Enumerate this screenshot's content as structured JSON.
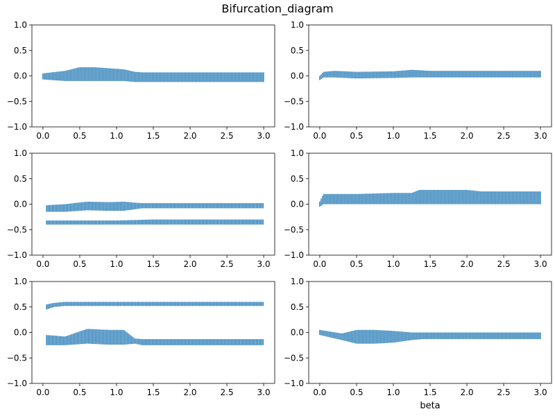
{
  "title": "Bifurcation_diagram",
  "xlabel": "beta",
  "colors": {
    "series": "#1f77b4",
    "axes": "#000000",
    "background": "#ffffff"
  },
  "chart_data": [
    {
      "type": "scatter",
      "panel": "top-left",
      "xlim": [
        -0.15,
        3.15
      ],
      "ylim": [
        -1.0,
        1.0
      ],
      "xticks": [
        0.0,
        0.5,
        1.0,
        1.5,
        2.0,
        2.5,
        3.0
      ],
      "yticks": [
        -1.0,
        -0.5,
        0.0,
        0.5,
        1.0
      ],
      "xtick_labels": [
        "0.0",
        "0.5",
        "1.0",
        "1.5",
        "2.0",
        "2.5",
        "3.0"
      ],
      "ytick_labels": [
        "−1.0",
        "−0.5",
        "0.0",
        "0.5",
        "1.0"
      ],
      "grid": false,
      "bands": [
        {
          "x": [
            0.0,
            0.3,
            0.5,
            0.7,
            0.9,
            1.1,
            1.25,
            1.35,
            3.0
          ],
          "y_low": [
            -0.07,
            -0.1,
            -0.1,
            -0.1,
            -0.1,
            -0.1,
            -0.12,
            -0.12,
            -0.12
          ],
          "y_high": [
            0.05,
            0.1,
            0.17,
            0.17,
            0.15,
            0.13,
            0.08,
            0.07,
            0.07
          ]
        }
      ]
    },
    {
      "type": "scatter",
      "panel": "top-right",
      "xlim": [
        -0.15,
        3.15
      ],
      "ylim": [
        -1.0,
        1.0
      ],
      "xticks": [
        0.0,
        0.5,
        1.0,
        1.5,
        2.0,
        2.5,
        3.0
      ],
      "yticks": [
        -1.0,
        -0.5,
        0.0,
        0.5,
        1.0
      ],
      "xtick_labels": [
        "0.0",
        "0.5",
        "1.0",
        "1.5",
        "2.0",
        "2.5",
        "3.0"
      ],
      "ytick_labels": [
        "−1.0",
        "−0.5",
        "0.0",
        "0.5",
        "1.0"
      ],
      "grid": false,
      "bands": [
        {
          "x": [
            0.0,
            0.05,
            0.2,
            0.5,
            1.0,
            1.25,
            1.5,
            3.0
          ],
          "y_low": [
            -0.08,
            -0.03,
            -0.03,
            -0.05,
            -0.04,
            -0.03,
            -0.03,
            -0.03
          ],
          "y_high": [
            0.0,
            0.08,
            0.1,
            0.08,
            0.09,
            0.12,
            0.1,
            0.1
          ]
        }
      ]
    },
    {
      "type": "scatter",
      "panel": "middle-left",
      "xlim": [
        -0.15,
        3.15
      ],
      "ylim": [
        -1.0,
        1.0
      ],
      "xticks": [
        0.0,
        0.5,
        1.0,
        1.5,
        2.0,
        2.5,
        3.0
      ],
      "yticks": [
        -1.0,
        -0.5,
        0.0,
        0.5,
        1.0
      ],
      "xtick_labels": [
        "0.0",
        "0.5",
        "1.0",
        "1.5",
        "2.0",
        "2.5",
        "3.0"
      ],
      "ytick_labels": [
        "−1.0",
        "−0.5",
        "0.0",
        "0.5",
        "1.0"
      ],
      "grid": false,
      "bands": [
        {
          "x": [
            0.05,
            0.3,
            0.6,
            0.9,
            1.1,
            1.25,
            1.35,
            3.0
          ],
          "y_low": [
            -0.15,
            -0.15,
            -0.12,
            -0.13,
            -0.13,
            -0.1,
            -0.08,
            -0.08
          ],
          "y_high": [
            -0.02,
            0.0,
            0.05,
            0.04,
            0.05,
            0.03,
            0.02,
            0.02
          ]
        },
        {
          "x": [
            0.05,
            0.5,
            1.0,
            1.5,
            2.0,
            2.5,
            3.0
          ],
          "y_low": [
            -0.4,
            -0.4,
            -0.4,
            -0.4,
            -0.4,
            -0.4,
            -0.4
          ],
          "y_high": [
            -0.32,
            -0.32,
            -0.32,
            -0.3,
            -0.3,
            -0.3,
            -0.3
          ]
        }
      ]
    },
    {
      "type": "scatter",
      "panel": "middle-right",
      "xlim": [
        -0.15,
        3.15
      ],
      "ylim": [
        -1.0,
        1.0
      ],
      "xticks": [
        0.0,
        0.5,
        1.0,
        1.5,
        2.0,
        2.5,
        3.0
      ],
      "yticks": [
        -1.0,
        -0.5,
        0.0,
        0.5,
        1.0
      ],
      "xtick_labels": [
        "0.0",
        "0.5",
        "1.0",
        "1.5",
        "2.0",
        "2.5",
        "3.0"
      ],
      "ytick_labels": [
        "−1.0",
        "−0.5",
        "0.0",
        "0.5",
        "1.0"
      ],
      "grid": false,
      "bands": [
        {
          "x": [
            0.0,
            0.05,
            0.5,
            1.0,
            1.25,
            1.35,
            2.0,
            2.2,
            3.0
          ],
          "y_low": [
            -0.05,
            0.0,
            0.0,
            0.0,
            0.0,
            0.0,
            0.0,
            0.0,
            0.0
          ],
          "y_high": [
            0.05,
            0.2,
            0.2,
            0.22,
            0.22,
            0.28,
            0.28,
            0.25,
            0.25
          ]
        }
      ]
    },
    {
      "type": "scatter",
      "panel": "bottom-left",
      "xlim": [
        -0.15,
        3.15
      ],
      "ylim": [
        -1.0,
        1.0
      ],
      "xticks": [
        0.0,
        0.5,
        1.0,
        1.5,
        2.0,
        2.5,
        3.0
      ],
      "yticks": [
        -1.0,
        -0.5,
        0.0,
        0.5,
        1.0
      ],
      "xtick_labels": [
        "0.0",
        "0.5",
        "1.0",
        "1.5",
        "2.0",
        "2.5",
        "3.0"
      ],
      "ytick_labels": [
        "−1.0",
        "−0.5",
        "0.0",
        "0.5",
        "1.0"
      ],
      "grid": false,
      "bands": [
        {
          "x": [
            0.05,
            0.15,
            0.3,
            0.5,
            1.0,
            1.5,
            2.0,
            2.5,
            3.0
          ],
          "y_low": [
            0.45,
            0.5,
            0.52,
            0.52,
            0.52,
            0.52,
            0.52,
            0.52,
            0.52
          ],
          "y_high": [
            0.55,
            0.58,
            0.6,
            0.6,
            0.6,
            0.6,
            0.6,
            0.6,
            0.6
          ]
        },
        {
          "x": [
            0.05,
            0.3,
            0.6,
            0.9,
            1.1,
            1.25,
            1.35,
            3.0
          ],
          "y_low": [
            -0.25,
            -0.25,
            -0.22,
            -0.24,
            -0.24,
            -0.22,
            -0.25,
            -0.25
          ],
          "y_high": [
            -0.05,
            -0.08,
            0.07,
            0.05,
            0.05,
            -0.12,
            -0.13,
            -0.13
          ]
        }
      ]
    },
    {
      "type": "scatter",
      "panel": "bottom-right",
      "xlim": [
        -0.15,
        3.15
      ],
      "ylim": [
        -1.0,
        1.0
      ],
      "xticks": [
        0.0,
        0.5,
        1.0,
        1.5,
        2.0,
        2.5,
        3.0
      ],
      "yticks": [
        -1.0,
        -0.5,
        0.0,
        0.5,
        1.0
      ],
      "xtick_labels": [
        "0.0",
        "0.5",
        "1.0",
        "1.5",
        "2.0",
        "2.5",
        "3.0"
      ],
      "ytick_labels": [
        "−1.0",
        "−0.5",
        "0.0",
        "0.5",
        "1.0"
      ],
      "grid": false,
      "bands": [
        {
          "x": [
            0.0,
            0.3,
            0.5,
            0.75,
            1.0,
            1.25,
            1.4,
            3.0
          ],
          "y_low": [
            -0.05,
            -0.15,
            -0.22,
            -0.22,
            -0.2,
            -0.15,
            -0.13,
            -0.13
          ],
          "y_high": [
            0.05,
            -0.02,
            0.05,
            0.05,
            0.03,
            0.0,
            0.0,
            0.0
          ]
        }
      ]
    }
  ]
}
